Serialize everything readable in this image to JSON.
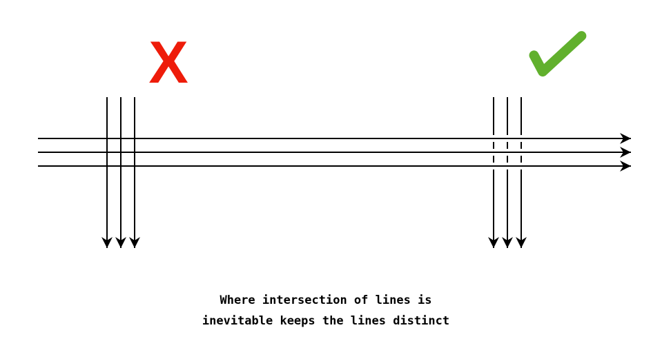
{
  "diagram": {
    "bad_mark": {
      "symbol": "X",
      "icon": "cross-mark-icon",
      "color": "#ee1c0a"
    },
    "good_mark": {
      "symbol": "✓",
      "icon": "check-mark-icon",
      "color": "#61b02d"
    },
    "caption": {
      "line1": "Where intersection of lines is",
      "line2": "inevitable keeps the lines distinct"
    },
    "line_color": "#000000"
  }
}
